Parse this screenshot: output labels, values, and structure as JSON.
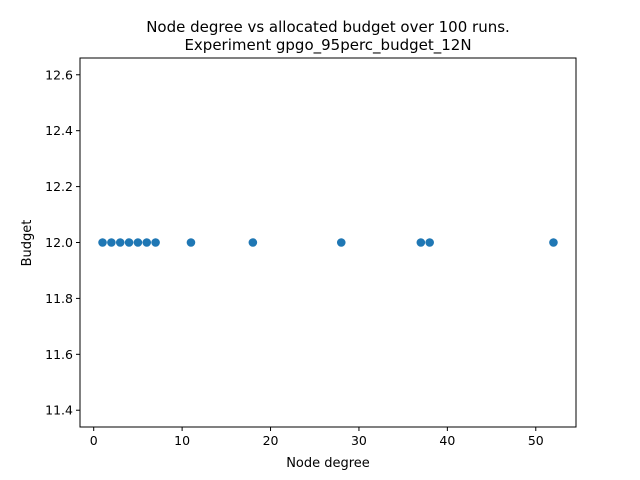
{
  "chart_data": {
    "type": "scatter",
    "title_line1": "Node degree vs allocated budget over 100 runs.",
    "title_line2": "Experiment gpgo_95perc_budget_12N",
    "xlabel": "Node degree",
    "ylabel": "Budget",
    "xlim": [
      -1.55,
      54.55
    ],
    "ylim": [
      11.34,
      12.66
    ],
    "xticks": [
      0,
      10,
      20,
      30,
      40,
      50
    ],
    "yticks": [
      11.4,
      11.6,
      11.8,
      12.0,
      12.2,
      12.4,
      12.6
    ],
    "xtick_labels": [
      "0",
      "10",
      "20",
      "30",
      "40",
      "50"
    ],
    "ytick_labels": [
      "11.4",
      "11.6",
      "11.8",
      "12.0",
      "12.2",
      "12.4",
      "12.6"
    ],
    "grid": false,
    "marker_color": "#1f77b4",
    "points": [
      {
        "x": 1,
        "y": 12.0
      },
      {
        "x": 2,
        "y": 12.0
      },
      {
        "x": 3,
        "y": 12.0
      },
      {
        "x": 4,
        "y": 12.0
      },
      {
        "x": 5,
        "y": 12.0
      },
      {
        "x": 6,
        "y": 12.0
      },
      {
        "x": 7,
        "y": 12.0
      },
      {
        "x": 11,
        "y": 12.0
      },
      {
        "x": 18,
        "y": 12.0
      },
      {
        "x": 28,
        "y": 12.0
      },
      {
        "x": 37,
        "y": 12.0
      },
      {
        "x": 38,
        "y": 12.0
      },
      {
        "x": 52,
        "y": 12.0
      }
    ]
  }
}
